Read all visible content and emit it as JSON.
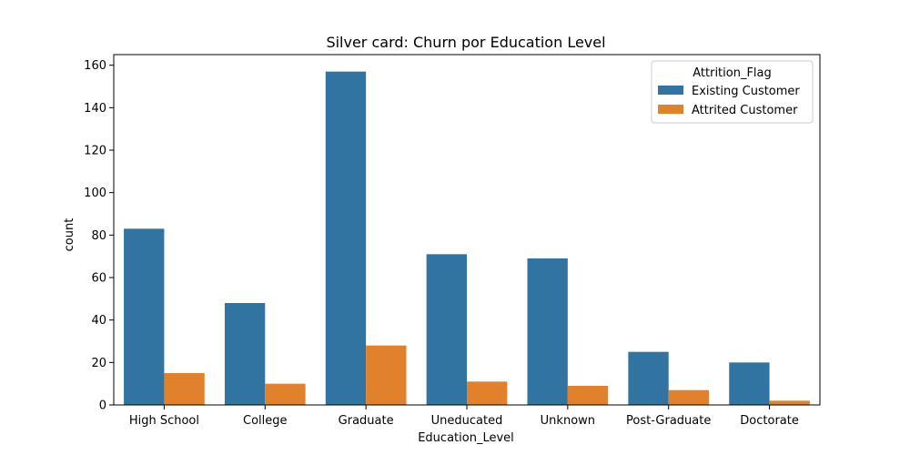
{
  "chart_data": {
    "type": "bar",
    "title": "Silver card: Churn por Education Level",
    "xlabel": "Education_Level",
    "ylabel": "count",
    "categories": [
      "High School",
      "College",
      "Graduate",
      "Uneducated",
      "Unknown",
      "Post-Graduate",
      "Doctorate"
    ],
    "series": [
      {
        "name": "Existing Customer",
        "color": "#3274a1",
        "values": [
          83,
          48,
          157,
          71,
          69,
          25,
          20
        ]
      },
      {
        "name": "Attrited Customer",
        "color": "#e1812c",
        "values": [
          15,
          10,
          28,
          11,
          9,
          7,
          2
        ]
      }
    ],
    "ylim": [
      0,
      165
    ],
    "yticks": [
      0,
      20,
      40,
      60,
      80,
      100,
      120,
      140,
      160
    ],
    "grid": false,
    "legend": {
      "title": "Attrition_Flag",
      "placement": "top-right"
    }
  }
}
